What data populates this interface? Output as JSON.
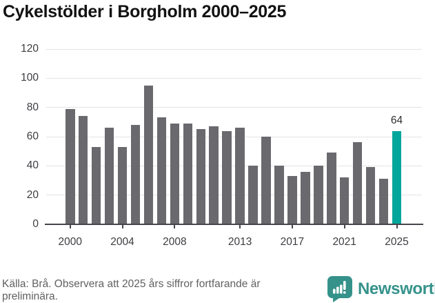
{
  "title": "Cykelstölder i Borgholm 2000–2025",
  "chart_data": {
    "type": "bar",
    "categories": [
      2000,
      2001,
      2002,
      2003,
      2004,
      2005,
      2006,
      2007,
      2008,
      2009,
      2010,
      2011,
      2012,
      2013,
      2014,
      2015,
      2016,
      2017,
      2018,
      2019,
      2020,
      2021,
      2022,
      2023,
      2024,
      2025
    ],
    "values": [
      79,
      74,
      53,
      66,
      53,
      68,
      95,
      73,
      69,
      69,
      65,
      67,
      64,
      66,
      40,
      60,
      40,
      33,
      36,
      40,
      49,
      32,
      56,
      39,
      31,
      64
    ],
    "title": "Cykelstölder i Borgholm 2000–2025",
    "xlabel": "",
    "ylabel": "",
    "ylim": [
      0,
      120
    ],
    "yticks": [
      0,
      20,
      40,
      60,
      80,
      100,
      120
    ],
    "xticks": [
      2000,
      2004,
      2008,
      2013,
      2017,
      2021,
      2025
    ],
    "grid": "horizontal",
    "legend": "none",
    "highlight_index": 25,
    "highlight_label": "64",
    "bar_color": "#69696e",
    "highlight_color": "#00a69b",
    "grid_color": "#e4e4e4",
    "axis_color": "#45454b",
    "tick_text_color": "#3c3c41"
  },
  "footer": {
    "source": "Källa: Brå. Observera att 2025 års siffror fortfarande är preliminära.",
    "brand": "Newsworthy",
    "brand_color": "#35928b"
  }
}
